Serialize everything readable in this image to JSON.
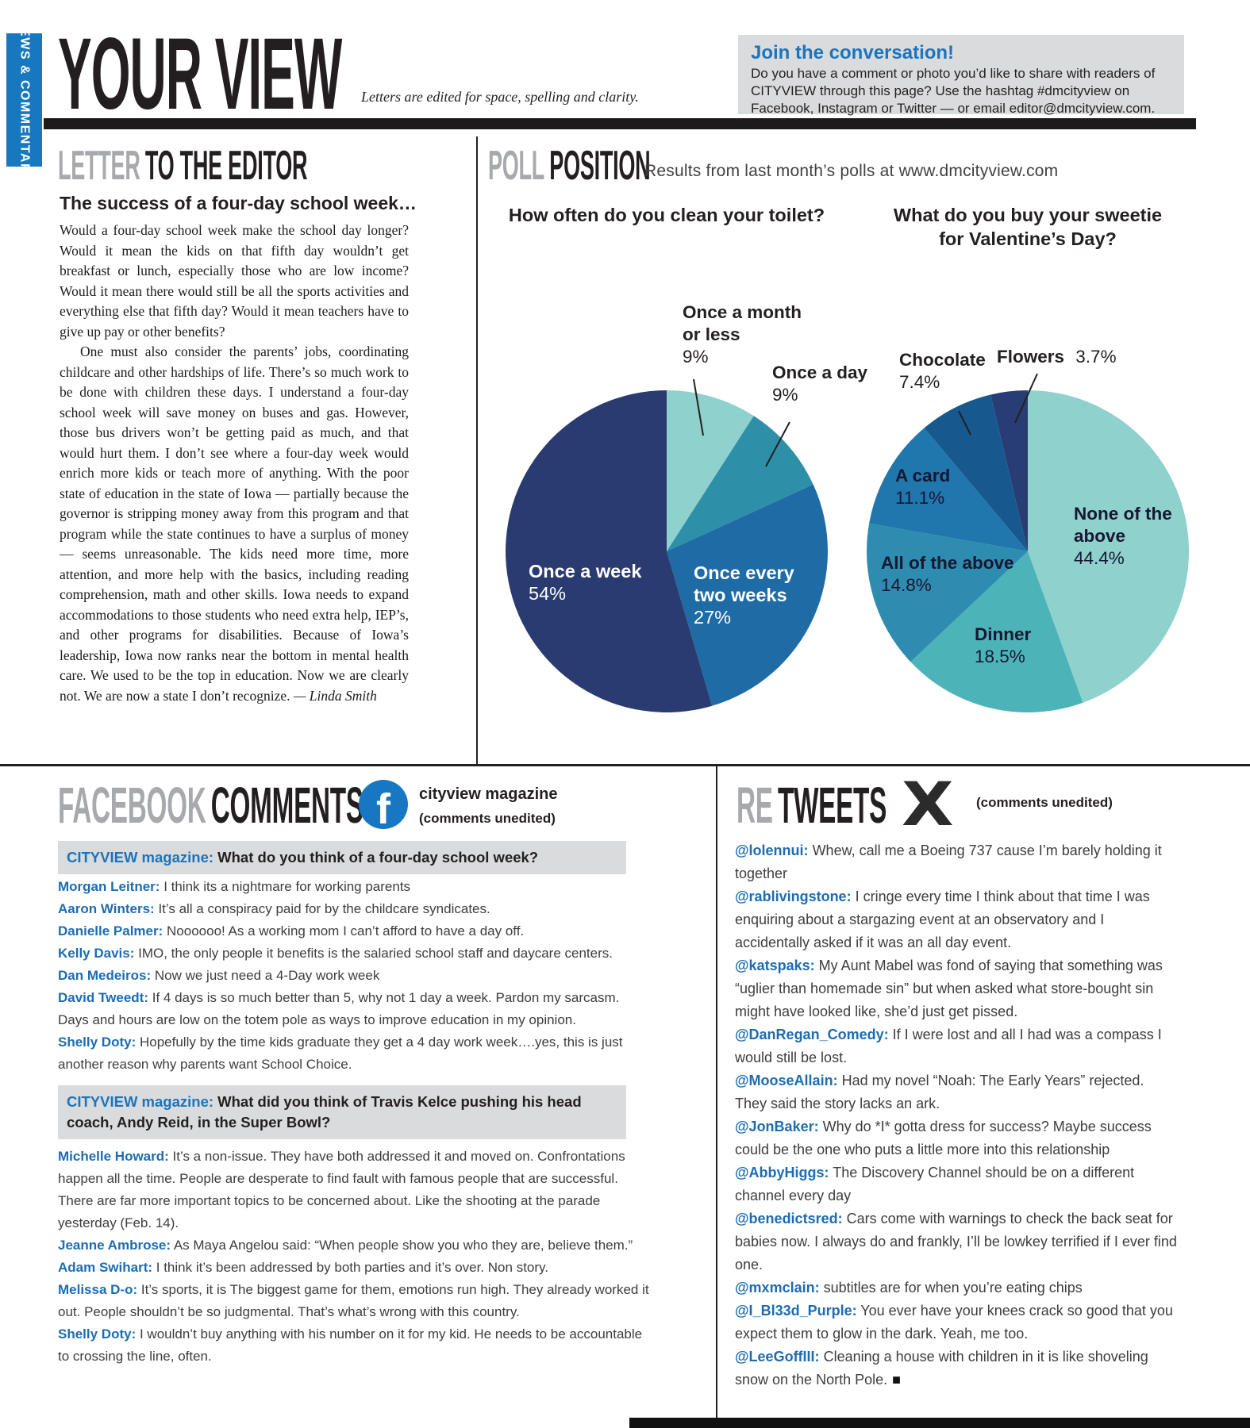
{
  "masthead": {
    "section_tab": "NEWS & COMMENTARY",
    "title": "YOUR VIEW",
    "tagline": "Letters are edited for space, spelling and clarity.",
    "join_box": {
      "title": "Join the conversation!",
      "body": "Do you have a comment or photo you’d like to share with readers of CITYVIEW through this page? Use the hashtag #dmcityview on Facebook, Instagram or Twitter — or email editor@dmcityview.com."
    }
  },
  "letter_section": {
    "heading_accent": "LETTER",
    "heading_rest": "TO THE EDITOR",
    "letter_title": "The success of a four-day school week…",
    "para1": "Would a four-day school week make the school day longer? Would it mean the kids on that fifth day wouldn’t get breakfast or lunch, especially those who are low income? Would it mean there would still be all the sports activities and everything else that fifth day? Would it mean teachers have to give up pay or other benefits?",
    "para2": "One must also consider the parents’ jobs, coordinating childcare and other hardships of life. There’s so much work to be done with children these days. I understand a four-day school week will save money on buses and gas. However, those bus drivers won’t be getting paid as much, and that would hurt them. I don’t see where a four-day week would enrich more kids or teach more of anything. With the poor state of education in the state of Iowa — partially because the governor is stripping money away from this program and that program while the state continues to have a surplus of money — seems unreasonable. The kids need more time, more attention, and more help with the basics, including reading comprehension, math and other skills. Iowa needs to expand accommodations to those students who need extra help, IEP’s, and other programs for disabilities. Because of Iowa’s leadership, Iowa now ranks near the bottom in mental health care. We used to be the top in education. Now we are clearly not. We are now a state I don’t recognize.",
    "signature": "— Linda Smith"
  },
  "poll_section": {
    "heading_accent": "POLL",
    "heading_rest": "POSITION",
    "subtitle": "Results from last month’s polls at www.dmcityview.com"
  },
  "chart_data": [
    {
      "type": "pie",
      "title": "How often do you clean your toilet?",
      "start_angle_deg": 0,
      "direction": "clockwise",
      "legend": "direct slice labels",
      "slices": [
        {
          "label": "Once a month or less",
          "pct": "9%",
          "value": 9,
          "color": "#8ed1cd"
        },
        {
          "label": "Once a day",
          "pct": "9%",
          "value": 9,
          "color": "#2e8fa9"
        },
        {
          "label": "Once every two weeks",
          "pct": "27%",
          "value": 27,
          "color": "#1e6ba6"
        },
        {
          "label": "Once a week",
          "pct": "54%",
          "value": 54,
          "color": "#2a3b72"
        }
      ]
    },
    {
      "type": "pie",
      "title": "What do you buy your sweetie for Valentine’s Day?",
      "start_angle_deg": 0,
      "direction": "clockwise",
      "legend": "direct slice labels",
      "slices": [
        {
          "label": "None of the above",
          "pct": "44.4%",
          "value": 44.4,
          "color": "#8ed1cd"
        },
        {
          "label": "Dinner",
          "pct": "18.5%",
          "value": 18.5,
          "color": "#4cb3b9"
        },
        {
          "label": "All of the above",
          "pct": "14.8%",
          "value": 14.8,
          "color": "#2e8cb0"
        },
        {
          "label": "A card",
          "pct": "11.1%",
          "value": 11.1,
          "color": "#2077ad"
        },
        {
          "label": "Chocolate",
          "pct": "7.4%",
          "value": 7.4,
          "color": "#17598f"
        },
        {
          "label": "Flowers",
          "pct": "3.7%",
          "value": 3.7,
          "color": "#273d73"
        }
      ]
    }
  ],
  "facebook_section": {
    "heading_accent": "FACEBOOK",
    "heading_rest": "COMMENTS",
    "account": "cityview magazine",
    "note": "(comments unedited)",
    "threads": [
      {
        "prompt_source": "CITYVIEW magazine:",
        "prompt": "What do you think of a four-day school week?",
        "comments": [
          {
            "name": "Morgan Leitner:",
            "text": "I think its a nightmare for working parents"
          },
          {
            "name": "Aaron Winters:",
            "text": "It’s all a conspiracy paid for by the childcare syndicates."
          },
          {
            "name": "Danielle Palmer:",
            "text": "Noooooo! As a working mom I can’t afford to have a day off."
          },
          {
            "name": "Kelly Davis:",
            "text": "IMO, the only people it benefits is the salaried school staff and daycare centers."
          },
          {
            "name": "Dan Medeiros:",
            "text": "Now we just need a 4-Day work week"
          },
          {
            "name": "David Tweedt:",
            "text": "If 4 days is so much better than 5, why not 1 day a week. Pardon my sarcasm. Days and hours are low on the totem pole as ways to improve education in my opinion."
          },
          {
            "name": "Shelly Doty:",
            "text": "Hopefully by the time kids graduate they get a 4 day work week….yes, this is just another reason why parents want School Choice."
          }
        ]
      },
      {
        "prompt_source": "CITYVIEW magazine:",
        "prompt": "What did you think of Travis Kelce pushing his head coach, Andy Reid, in the Super Bowl?",
        "comments": [
          {
            "name": "Michelle Howard:",
            "text": "It’s a non-issue. They have both addressed it and moved on. Confrontations happen all the time. People are desperate to find fault with famous people that are successful. There are far more important topics to be concerned about. Like the shooting at the parade yesterday (Feb. 14)."
          },
          {
            "name": "Jeanne Ambrose:",
            "text": "As Maya Angelou said: “When people show you who they are, believe them.”"
          },
          {
            "name": "Adam Swihart:",
            "text": "I think it’s been addressed by both parties and it’s over. Non story."
          },
          {
            "name": "Melissa D-o:",
            "text": "It’s sports, it is The biggest game for them, emotions run high. They already worked it out. People shouldn’t be so judgmental. That’s what’s wrong with this country."
          },
          {
            "name": "Shelly Doty:",
            "text": "I wouldn’t buy anything with his number on it for my kid. He needs to be accountable to crossing the line, often."
          }
        ]
      }
    ]
  },
  "retweets_section": {
    "heading_accent": "RE",
    "heading_rest": "TWEETS",
    "note": "(comments unedited)",
    "end_mark": "■",
    "tweets": [
      {
        "handle": "@lolennui:",
        "text": "Whew, call me a Boeing 737 cause I’m barely holding it together"
      },
      {
        "handle": "@rablivingstone:",
        "text": "I cringe every time I think about that time I was enquiring about a stargazing event at an observatory and I accidentally asked if it was an all day event."
      },
      {
        "handle": "@katspaks:",
        "text": "My Aunt Mabel was fond of saying that something was “uglier than homemade sin” but when asked what store-bought sin might have looked like, she’d just get pissed."
      },
      {
        "handle": "@DanRegan_Comedy:",
        "text": "If I were lost and all I had was a compass I would still be lost."
      },
      {
        "handle": "@MooseAllain:",
        "text": "Had my novel “Noah: The Early Years” rejected. They said the story lacks an ark."
      },
      {
        "handle": "@JonBaker:",
        "text": "Why do *I* gotta dress for success? Maybe success could be the one who puts a little more into this relationship"
      },
      {
        "handle": "@AbbyHiggs:",
        "text": "The Discovery Channel should be on a different channel every day"
      },
      {
        "handle": "@benedictsred:",
        "text": "Cars come with warnings to check the back seat for babies now. I always do and frankly, I’ll be lowkey terrified if I ever find one."
      },
      {
        "handle": "@mxmclain:",
        "text": "subtitles are for when you’re eating chips"
      },
      {
        "handle": "@I_Bl33d_Purple:",
        "text": "You ever have your knees crack so good that you expect them to glow in the dark. Yeah, me too."
      },
      {
        "handle": "@LeeGoffIII:",
        "text": "Cleaning a house with children in it is like shoveling snow on the North Pole."
      }
    ]
  },
  "colors": {
    "brand_blue": "#1878bf",
    "link_blue": "#1d6cb1",
    "ink": "#231f20",
    "accent_gray": "#a7a9ac",
    "panel_gray": "#dadbdc"
  }
}
